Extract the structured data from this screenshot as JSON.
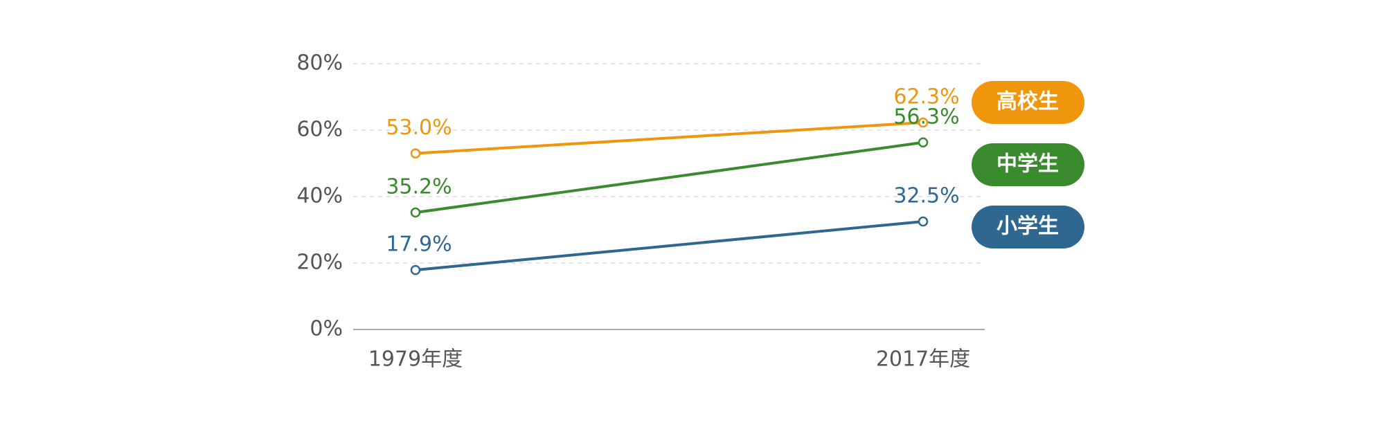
{
  "chart_data": {
    "type": "line",
    "categories": [
      "1979年度",
      "2017年度"
    ],
    "series": [
      {
        "name": "高校生",
        "color": "#f0960c",
        "values": [
          53.0,
          62.3
        ],
        "value_labels": [
          "53.0%",
          "62.3%"
        ]
      },
      {
        "name": "中学生",
        "color": "#3a8b2e",
        "values": [
          35.2,
          56.3
        ],
        "value_labels": [
          "35.2%",
          "56.3%"
        ]
      },
      {
        "name": "小学生",
        "color": "#2e6891",
        "values": [
          17.9,
          32.5
        ],
        "value_labels": [
          "17.9%",
          "32.5%"
        ]
      }
    ],
    "ylim": [
      0,
      80
    ],
    "yticks": [
      {
        "value": 0,
        "label": "0%"
      },
      {
        "value": 20,
        "label": "20%"
      },
      {
        "value": 40,
        "label": "40%"
      },
      {
        "value": 60,
        "label": "60%"
      },
      {
        "value": 80,
        "label": "80%"
      }
    ],
    "grid": true
  }
}
